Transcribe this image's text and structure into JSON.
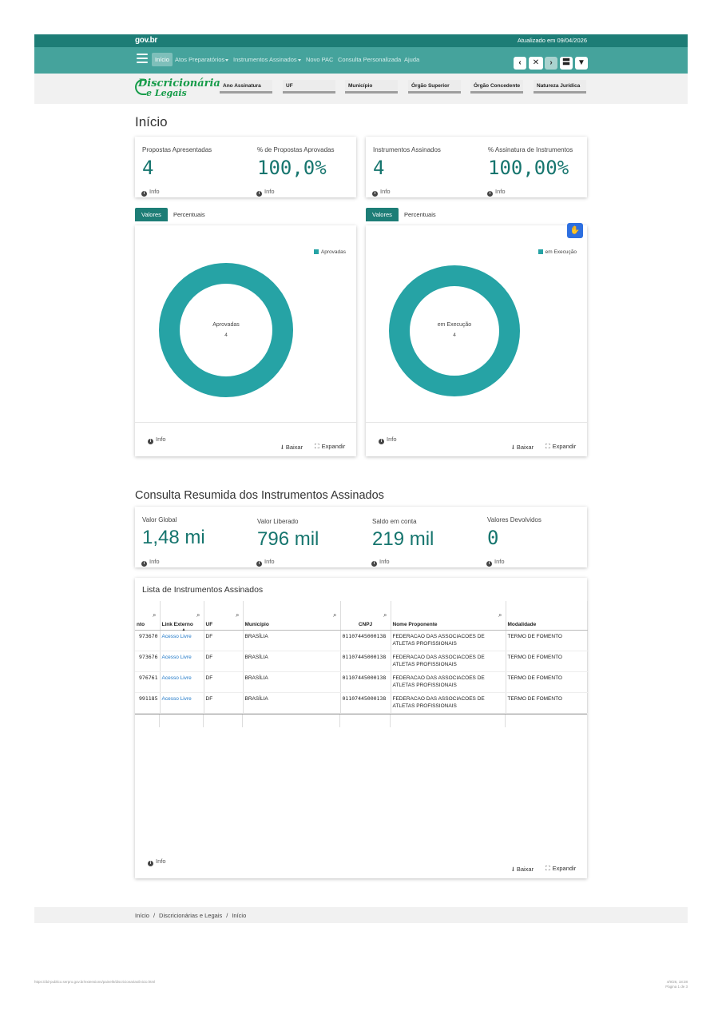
{
  "topbar": {
    "logo": "gov.br",
    "updated": "Atualizado em 09/04/2026"
  },
  "nav": {
    "items": [
      "Início",
      "Atos Preparatórios",
      "Instrumentos Assinados",
      "Novo PAC",
      "Consulta Personalizada",
      "Ajuda"
    ],
    "buttons": [
      "‹",
      "✕",
      "›",
      "〓",
      "▼"
    ]
  },
  "brand": {
    "line1": "Discricionárias",
    "line2": "e Legais"
  },
  "filters": [
    "Ano Assinatura",
    "UF",
    "Município",
    "Órgão Superior",
    "Órgão Concedente",
    "Natureza Jurídica"
  ],
  "page_title": "Início",
  "kpis_top": [
    {
      "label": "Propostas Apresentadas",
      "value": "4",
      "info": "Info"
    },
    {
      "label": "% de Propostas Aprovadas",
      "value": "100,0%",
      "info": "Info"
    },
    {
      "label": "Instrumentos Assinados",
      "value": "4",
      "info": "Info"
    },
    {
      "label": "% Assinatura de Instrumentos",
      "value": "100,00%",
      "info": "Info"
    }
  ],
  "tabs": {
    "values": "Valores",
    "percent": "Percentuais"
  },
  "chart_data": [
    {
      "type": "pie",
      "categories": [
        "Aprovadas"
      ],
      "values": [
        4
      ],
      "center_label": "Aprovadas",
      "center_value": "4",
      "legend": "top-right",
      "colors": [
        "#26a3a5"
      ]
    },
    {
      "type": "pie",
      "categories": [
        "em Execução"
      ],
      "values": [
        4
      ],
      "center_label": "em Execução",
      "center_value": "4",
      "legend": "top-right",
      "colors": [
        "#26a3a5"
      ]
    }
  ],
  "chart_actions": {
    "info": "Info",
    "download": "Baixar",
    "expand": "Expandir"
  },
  "section2_title": "Consulta Resumida dos Instrumentos Assinados",
  "kpis_mid": [
    {
      "label": "Valor Global",
      "value": "1,48 mi",
      "info": "Info"
    },
    {
      "label": "Valor Liberado",
      "value": "796 mil",
      "info": "Info"
    },
    {
      "label": "Saldo em conta",
      "value": "219 mil",
      "info": "Info"
    },
    {
      "label": "Valores Devolvidos",
      "value": "0",
      "info": "Info"
    }
  ],
  "table": {
    "title": "Lista de Instrumentos Assinados",
    "headers": [
      "nto",
      "Link Externo",
      "UF",
      "Município",
      "CNPJ",
      "Nome Proponente",
      "Modalidade"
    ],
    "rows": [
      [
        "973670",
        "Acesso Livre",
        "DF",
        "BRASÍLIA",
        "01107445000138",
        "FEDERACAO DAS ASSOCIACOES DE ATLETAS PROFISSIONAIS",
        "TERMO DE FOMENTO"
      ],
      [
        "973676",
        "Acesso Livre",
        "DF",
        "BRASÍLIA",
        "01107445000138",
        "FEDERACAO DAS ASSOCIACOES DE ATLETAS PROFISSIONAIS",
        "TERMO DE FOMENTO"
      ],
      [
        "976761",
        "Acesso Livre",
        "DF",
        "BRASÍLIA",
        "01107445000138",
        "FEDERACAO DAS ASSOCIACOES DE ATLETAS PROFISSIONAIS",
        "TERMO DE FOMENTO"
      ],
      [
        "991185",
        "Acesso Livre",
        "DF",
        "BRASÍLIA",
        "01107445000138",
        "FEDERACAO DAS ASSOCIACOES DE ATLETAS PROFISSIONAIS",
        "TERMO DE FOMENTO"
      ]
    ]
  },
  "breadcrumb": [
    "Início",
    "Discricionárias e Legais",
    "Início"
  ],
  "print_footer": {
    "url": "https://dd-publico.serpro.gov.br/extensions/painel0/discricionarias/inicio.html",
    "date": "4/9/26, 18:38",
    "page": "Página 1 de 3"
  },
  "colors": {
    "header": "#1d7d76",
    "nav": "#45a39c",
    "accent": "#16756e",
    "donut": "#26a3a5",
    "link": "#1f78c8"
  }
}
